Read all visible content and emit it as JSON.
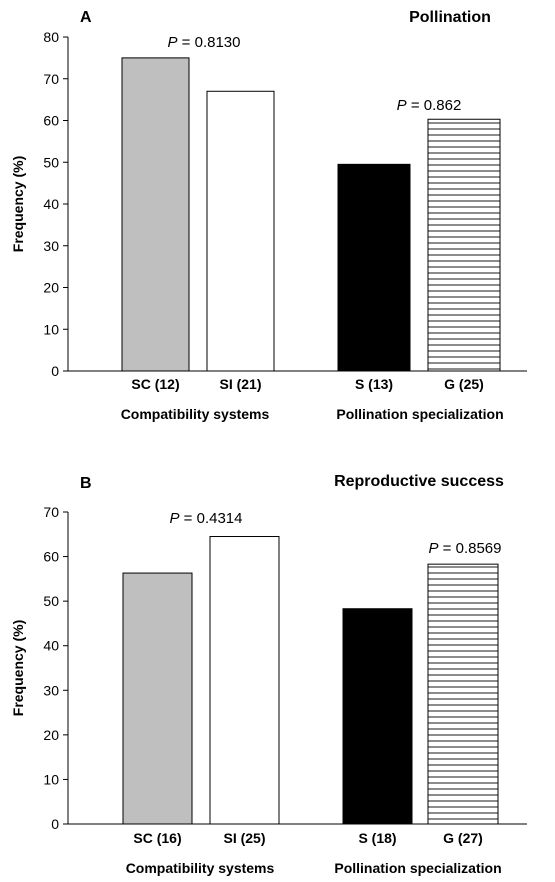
{
  "chart_data": [
    {
      "type": "bar",
      "panel_label": "A",
      "title": "Pollination",
      "ylabel": "Frequency (%)",
      "ylim": [
        0,
        80
      ],
      "yticks": [
        0,
        10,
        20,
        30,
        40,
        50,
        60,
        70,
        80
      ],
      "categories": [
        "SC (12)",
        "SI (21)",
        "S (13)",
        "G (25)"
      ],
      "values": [
        75,
        67,
        49.5,
        60.3
      ],
      "bar_styles": [
        "gray",
        "white",
        "black",
        "hatched"
      ],
      "groups": [
        {
          "label": "Compatibility systems",
          "p_prefix": "P",
          "p_text": " = 0.8130"
        },
        {
          "label": "Pollination specialization",
          "p_prefix": "P",
          "p_text": " = 0.862"
        }
      ],
      "colors": {
        "gray": "#bfbfbf",
        "white": "#ffffff",
        "black": "#000000",
        "hatched": "#000000"
      }
    },
    {
      "type": "bar",
      "panel_label": "B",
      "title": "Reproductive success",
      "ylabel": "Frequency (%)",
      "ylim": [
        0,
        70
      ],
      "yticks": [
        0,
        10,
        20,
        30,
        40,
        50,
        60,
        70
      ],
      "categories": [
        "SC (16)",
        "SI (25)",
        "S (18)",
        "G (27)"
      ],
      "values": [
        56.3,
        64.5,
        48.3,
        58.3
      ],
      "bar_styles": [
        "gray",
        "white",
        "black",
        "hatched"
      ],
      "groups": [
        {
          "label": "Compatibility systems",
          "p_prefix": "P",
          "p_text": " = 0.4314"
        },
        {
          "label": "Pollination specialization",
          "p_prefix": "P",
          "p_text": " = 0.8569"
        }
      ],
      "colors": {
        "gray": "#bfbfbf",
        "white": "#ffffff",
        "black": "#000000",
        "hatched": "#000000"
      }
    }
  ]
}
